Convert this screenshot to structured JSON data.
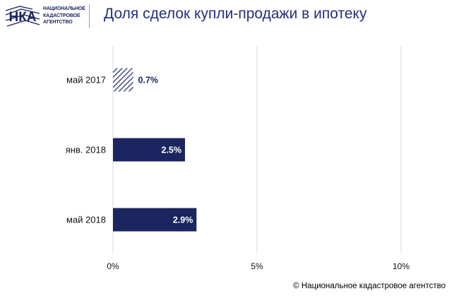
{
  "header": {
    "logo": {
      "abbr": "НКА",
      "lines": [
        "НАЦИОНАЛЬНОЕ",
        "КАДАСТРОВОЕ",
        "АГЕНТСТВО"
      ]
    },
    "title": "Доля сделок купли-продажи в ипотеку"
  },
  "chart_data": {
    "type": "bar",
    "orientation": "horizontal",
    "title": "Доля сделок купли-продажи в ипотеку",
    "categories": [
      "май 2017",
      "янв. 2018",
      "май 2018"
    ],
    "values": [
      0.7,
      2.5,
      2.9
    ],
    "data_labels": [
      "0.7%",
      "2.5%",
      "2.9%"
    ],
    "xlim": [
      0,
      10
    ],
    "xticks": [
      0,
      5,
      10
    ],
    "xtick_labels": [
      "0%",
      "5%",
      "10%"
    ],
    "grid": true,
    "bar_color": "#1b2660",
    "hatched_categories": [
      "май 2017"
    ]
  },
  "footer": {
    "copyright": "© Национальное кадастровое агентство"
  }
}
